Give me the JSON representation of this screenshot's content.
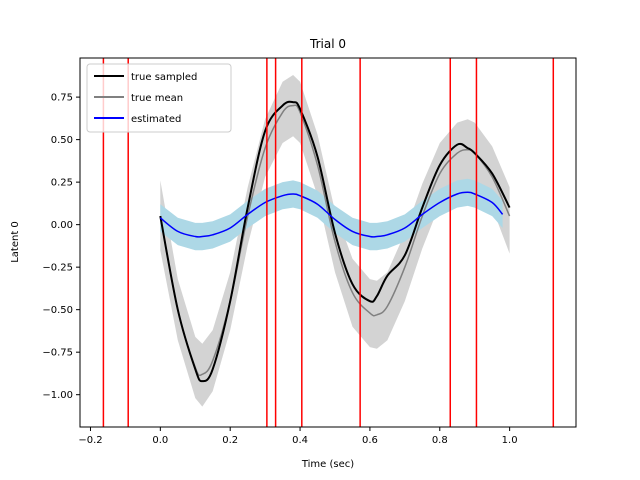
{
  "chart_data": {
    "type": "line",
    "title": "Trial 0",
    "xlabel": "Time (sec)",
    "ylabel": "Latent 0",
    "xlim": [
      -0.23,
      1.19
    ],
    "ylim": [
      -1.19,
      0.98
    ],
    "x_ticks": [
      -0.2,
      0.0,
      0.2,
      0.4,
      0.6,
      0.8,
      1.0
    ],
    "x_tick_labels": [
      "−0.2",
      "0.0",
      "0.2",
      "0.4",
      "0.6",
      "0.8",
      "1.0"
    ],
    "y_ticks": [
      -1.0,
      -0.75,
      -0.5,
      -0.25,
      0.0,
      0.25,
      0.5,
      0.75
    ],
    "y_tick_labels": [
      "−1.00",
      "−0.75",
      "−0.50",
      "−0.25",
      "0.00",
      "0.25",
      "0.50",
      "0.75"
    ],
    "grid": false,
    "legend": {
      "position": "top-left",
      "entries": [
        {
          "label": "true sampled",
          "color": "#000000"
        },
        {
          "label": "true mean",
          "color": "#808080"
        },
        {
          "label": "estimated",
          "color": "#0000ff"
        }
      ]
    },
    "series": [
      {
        "name": "true sampled",
        "color": "#000000",
        "x": [
          0.0,
          0.05,
          0.1,
          0.12,
          0.15,
          0.2,
          0.25,
          0.3,
          0.35,
          0.38,
          0.4,
          0.45,
          0.5,
          0.55,
          0.6,
          0.62,
          0.65,
          0.7,
          0.75,
          0.8,
          0.85,
          0.88,
          0.9,
          0.95,
          1.0
        ],
        "y": [
          0.05,
          -0.5,
          -0.85,
          -0.92,
          -0.85,
          -0.45,
          0.1,
          0.55,
          0.7,
          0.72,
          0.68,
          0.4,
          -0.05,
          -0.35,
          -0.45,
          -0.42,
          -0.3,
          -0.18,
          0.1,
          0.35,
          0.47,
          0.45,
          0.42,
          0.3,
          0.1
        ]
      },
      {
        "name": "true mean",
        "color": "#808080",
        "x": [
          0.0,
          0.05,
          0.1,
          0.12,
          0.15,
          0.2,
          0.25,
          0.3,
          0.35,
          0.38,
          0.4,
          0.45,
          0.5,
          0.55,
          0.6,
          0.62,
          0.65,
          0.7,
          0.75,
          0.8,
          0.85,
          0.88,
          0.9,
          0.95,
          1.0
        ],
        "y": [
          0.05,
          -0.5,
          -0.84,
          -0.88,
          -0.8,
          -0.45,
          0.05,
          0.45,
          0.66,
          0.7,
          0.66,
          0.35,
          -0.1,
          -0.4,
          -0.52,
          -0.53,
          -0.48,
          -0.25,
          0.05,
          0.3,
          0.42,
          0.44,
          0.42,
          0.28,
          0.05
        ]
      },
      {
        "name": "estimated",
        "color": "#0000ff",
        "x": [
          0.0,
          0.05,
          0.1,
          0.12,
          0.15,
          0.2,
          0.25,
          0.3,
          0.35,
          0.38,
          0.4,
          0.45,
          0.5,
          0.55,
          0.6,
          0.62,
          0.65,
          0.7,
          0.75,
          0.8,
          0.85,
          0.88,
          0.9,
          0.95,
          0.98
        ],
        "y": [
          0.04,
          -0.04,
          -0.07,
          -0.07,
          -0.06,
          -0.02,
          0.06,
          0.13,
          0.17,
          0.18,
          0.17,
          0.12,
          0.03,
          -0.04,
          -0.07,
          -0.07,
          -0.06,
          -0.02,
          0.06,
          0.13,
          0.18,
          0.19,
          0.18,
          0.13,
          0.06
        ]
      }
    ],
    "bands": [
      {
        "of": "true mean",
        "color": "#d3d3d3",
        "x": [
          0.0,
          0.05,
          0.1,
          0.12,
          0.15,
          0.2,
          0.25,
          0.3,
          0.35,
          0.38,
          0.4,
          0.45,
          0.5,
          0.55,
          0.6,
          0.62,
          0.65,
          0.7,
          0.75,
          0.8,
          0.85,
          0.88,
          0.9,
          0.95,
          1.0
        ],
        "lower": [
          -0.15,
          -0.68,
          -1.02,
          -1.07,
          -0.98,
          -0.62,
          -0.12,
          0.28,
          0.48,
          0.52,
          0.48,
          0.17,
          -0.28,
          -0.6,
          -0.72,
          -0.73,
          -0.68,
          -0.45,
          -0.14,
          0.12,
          0.24,
          0.26,
          0.24,
          0.1,
          -0.17
        ],
        "upper": [
          0.26,
          -0.32,
          -0.66,
          -0.7,
          -0.62,
          -0.28,
          0.22,
          0.62,
          0.84,
          0.88,
          0.84,
          0.53,
          0.08,
          -0.2,
          -0.32,
          -0.33,
          -0.28,
          -0.05,
          0.24,
          0.48,
          0.6,
          0.62,
          0.6,
          0.46,
          0.22
        ]
      },
      {
        "of": "estimated",
        "color": "#add8e6",
        "x": [
          0.0,
          0.05,
          0.1,
          0.12,
          0.15,
          0.2,
          0.25,
          0.3,
          0.35,
          0.38,
          0.4,
          0.45,
          0.5,
          0.55,
          0.6,
          0.62,
          0.65,
          0.7,
          0.75,
          0.8,
          0.85,
          0.88,
          0.9,
          0.95,
          0.98
        ],
        "lower": [
          -0.04,
          -0.12,
          -0.15,
          -0.15,
          -0.14,
          -0.1,
          -0.02,
          0.05,
          0.09,
          0.1,
          0.09,
          0.04,
          -0.05,
          -0.12,
          -0.15,
          -0.15,
          -0.14,
          -0.1,
          -0.02,
          0.05,
          0.1,
          0.11,
          0.1,
          0.05,
          -0.02
        ],
        "upper": [
          0.12,
          0.04,
          0.01,
          0.01,
          0.02,
          0.06,
          0.14,
          0.21,
          0.25,
          0.26,
          0.25,
          0.2,
          0.11,
          0.04,
          0.01,
          0.01,
          0.02,
          0.06,
          0.14,
          0.21,
          0.26,
          0.27,
          0.26,
          0.21,
          0.14
        ]
      }
    ],
    "vertical_lines": {
      "color": "#ff0000",
      "x": [
        -0.163,
        -0.092,
        0.305,
        0.33,
        0.405,
        0.572,
        0.83,
        0.905,
        1.125
      ]
    }
  }
}
